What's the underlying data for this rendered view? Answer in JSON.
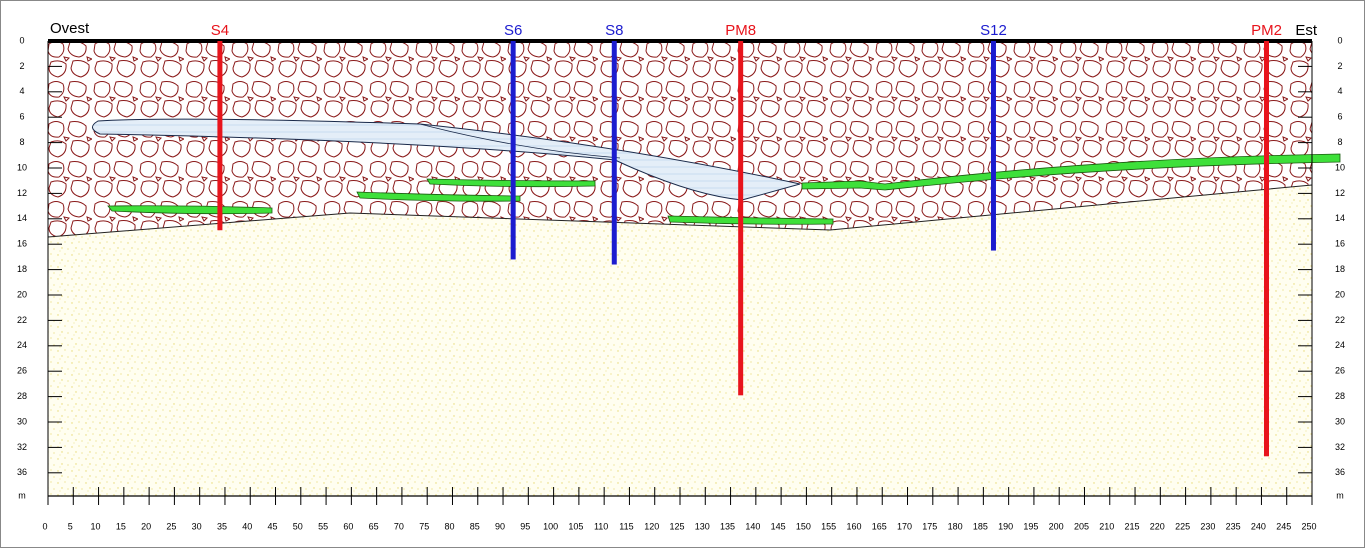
{
  "section": {
    "left_label": "Ovest",
    "right_label": "Est",
    "depth_unit": "m",
    "depth_ticks": [
      0,
      2,
      4,
      6,
      8,
      10,
      12,
      14,
      16,
      18,
      20,
      22,
      24,
      26,
      28,
      30,
      32,
      36
    ],
    "x_ticks": [
      0,
      5,
      10,
      15,
      20,
      25,
      30,
      35,
      40,
      45,
      50,
      55,
      60,
      65,
      70,
      75,
      80,
      85,
      90,
      95,
      100,
      105,
      110,
      115,
      120,
      125,
      130,
      135,
      140,
      145,
      150,
      155,
      160,
      165,
      170,
      175,
      180,
      185,
      190,
      195,
      200,
      205,
      210,
      215,
      220,
      225,
      230,
      235,
      240,
      245,
      250
    ],
    "boreholes": [
      {
        "name": "S4",
        "color": "#e8141c",
        "x": 34,
        "depth": 14.9
      },
      {
        "name": "S6",
        "color": "#1c1ccf",
        "x": 92,
        "depth": 17.2
      },
      {
        "name": "S8",
        "color": "#1c1ccf",
        "x": 112,
        "depth": 17.6
      },
      {
        "name": "PM8",
        "color": "#e8141c",
        "x": 137,
        "depth": 27.9
      },
      {
        "name": "S12",
        "color": "#1c1ccf",
        "x": 187,
        "depth": 16.5
      },
      {
        "name": "PM2",
        "color": "#e8141c",
        "x": 241,
        "depth": 32.7
      }
    ]
  }
}
